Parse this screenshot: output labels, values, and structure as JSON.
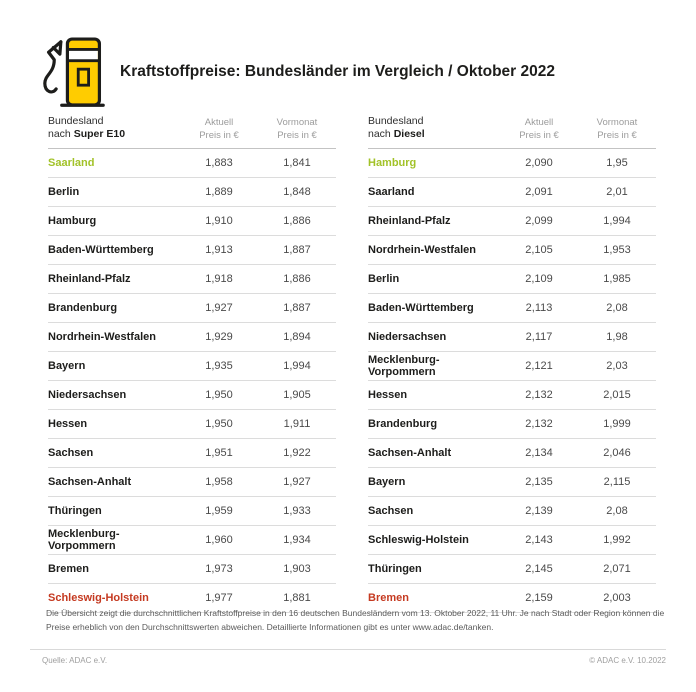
{
  "page": {
    "title": "Kraftstoffpreise: Bundesländer im Vergleich / Oktober 2022"
  },
  "colors": {
    "accent_yellow": "#FFCC00",
    "highlight_green": "#A2C228",
    "highlight_red": "#C53A21",
    "ink": "#1D1D1B"
  },
  "tables": [
    {
      "id": "super-e10",
      "head": {
        "group_line1": "Bundesland",
        "group_line2_prefix": "nach",
        "fuel": "Super E10",
        "col_aktuell_line1": "Aktuell",
        "col_aktuell_line2": "Preis in €",
        "col_vormonat_line1": "Vormonat",
        "col_vormonat_line2": "Preis in €"
      },
      "rows": [
        {
          "state": "Saarland",
          "aktuell": "1,883",
          "vormonat": "1,841",
          "highlight": "green"
        },
        {
          "state": "Berlin",
          "aktuell": "1,889",
          "vormonat": "1,848",
          "highlight": null
        },
        {
          "state": "Hamburg",
          "aktuell": "1,910",
          "vormonat": "1,886",
          "highlight": null
        },
        {
          "state": "Baden-Württemberg",
          "aktuell": "1,913",
          "vormonat": "1,887",
          "highlight": null
        },
        {
          "state": "Rheinland-Pfalz",
          "aktuell": "1,918",
          "vormonat": "1,886",
          "highlight": null
        },
        {
          "state": "Brandenburg",
          "aktuell": "1,927",
          "vormonat": "1,887",
          "highlight": null
        },
        {
          "state": "Nordrhein-Westfalen",
          "aktuell": "1,929",
          "vormonat": "1,894",
          "highlight": null
        },
        {
          "state": "Bayern",
          "aktuell": "1,935",
          "vormonat": "1,994",
          "highlight": null
        },
        {
          "state": "Niedersachsen",
          "aktuell": "1,950",
          "vormonat": "1,905",
          "highlight": null
        },
        {
          "state": "Hessen",
          "aktuell": "1,950",
          "vormonat": "1,911",
          "highlight": null
        },
        {
          "state": "Sachsen",
          "aktuell": "1,951",
          "vormonat": "1,922",
          "highlight": null
        },
        {
          "state": "Sachsen-Anhalt",
          "aktuell": "1,958",
          "vormonat": "1,927",
          "highlight": null
        },
        {
          "state": "Thüringen",
          "aktuell": "1,959",
          "vormonat": "1,933",
          "highlight": null
        },
        {
          "state": "Mecklenburg-Vorpommern",
          "aktuell": "1,960",
          "vormonat": "1,934",
          "highlight": null
        },
        {
          "state": "Bremen",
          "aktuell": "1,973",
          "vormonat": "1,903",
          "highlight": null
        },
        {
          "state": "Schleswig-Holstein",
          "aktuell": "1,977",
          "vormonat": "1,881",
          "highlight": "red"
        }
      ]
    },
    {
      "id": "diesel",
      "head": {
        "group_line1": "Bundesland",
        "group_line2_prefix": "nach",
        "fuel": "Diesel",
        "col_aktuell_line1": "Aktuell",
        "col_aktuell_line2": "Preis in €",
        "col_vormonat_line1": "Vormonat",
        "col_vormonat_line2": "Preis in €"
      },
      "rows": [
        {
          "state": "Hamburg",
          "aktuell": "2,090",
          "vormonat": "1,95",
          "highlight": "green"
        },
        {
          "state": "Saarland",
          "aktuell": "2,091",
          "vormonat": "2,01",
          "highlight": null
        },
        {
          "state": "Rheinland-Pfalz",
          "aktuell": "2,099",
          "vormonat": "1,994",
          "highlight": null
        },
        {
          "state": "Nordrhein-Westfalen",
          "aktuell": "2,105",
          "vormonat": "1,953",
          "highlight": null
        },
        {
          "state": "Berlin",
          "aktuell": "2,109",
          "vormonat": "1,985",
          "highlight": null
        },
        {
          "state": "Baden-Württemberg",
          "aktuell": "2,113",
          "vormonat": "2,08",
          "highlight": null
        },
        {
          "state": "Niedersachsen",
          "aktuell": "2,117",
          "vormonat": "1,98",
          "highlight": null
        },
        {
          "state": "Mecklenburg-Vorpommern",
          "aktuell": "2,121",
          "vormonat": "2,03",
          "highlight": null
        },
        {
          "state": "Hessen",
          "aktuell": "2,132",
          "vormonat": "2,015",
          "highlight": null
        },
        {
          "state": "Brandenburg",
          "aktuell": "2,132",
          "vormonat": "1,999",
          "highlight": null
        },
        {
          "state": "Sachsen-Anhalt",
          "aktuell": "2,134",
          "vormonat": "2,046",
          "highlight": null
        },
        {
          "state": "Bayern",
          "aktuell": "2,135",
          "vormonat": "2,115",
          "highlight": null
        },
        {
          "state": "Sachsen",
          "aktuell": "2,139",
          "vormonat": "2,08",
          "highlight": null
        },
        {
          "state": "Schleswig-Holstein",
          "aktuell": "2,143",
          "vormonat": "1,992",
          "highlight": null
        },
        {
          "state": "Thüringen",
          "aktuell": "2,145",
          "vormonat": "2,071",
          "highlight": null
        },
        {
          "state": "Bremen",
          "aktuell": "2,159",
          "vormonat": "2,003",
          "highlight": "red"
        }
      ]
    }
  ],
  "chart_data": [
    {
      "type": "table",
      "title": "Bundesland nach Super E10",
      "columns": [
        "Bundesland",
        "Aktuell Preis in €",
        "Vormonat Preis in €"
      ],
      "rows": [
        [
          "Saarland",
          1.883,
          1.841
        ],
        [
          "Berlin",
          1.889,
          1.848
        ],
        [
          "Hamburg",
          1.91,
          1.886
        ],
        [
          "Baden-Württemberg",
          1.913,
          1.887
        ],
        [
          "Rheinland-Pfalz",
          1.918,
          1.886
        ],
        [
          "Brandenburg",
          1.927,
          1.887
        ],
        [
          "Nordrhein-Westfalen",
          1.929,
          1.894
        ],
        [
          "Bayern",
          1.935,
          1.994
        ],
        [
          "Niedersachsen",
          1.95,
          1.905
        ],
        [
          "Hessen",
          1.95,
          1.911
        ],
        [
          "Sachsen",
          1.951,
          1.922
        ],
        [
          "Sachsen-Anhalt",
          1.958,
          1.927
        ],
        [
          "Thüringen",
          1.959,
          1.933
        ],
        [
          "Mecklenburg-Vorpommern",
          1.96,
          1.934
        ],
        [
          "Bremen",
          1.973,
          1.903
        ],
        [
          "Schleswig-Holstein",
          1.977,
          1.881
        ]
      ],
      "annotations": {
        "cheapest_highlighted_green": "Saarland",
        "most_expensive_highlighted_red": "Schleswig-Holstein"
      }
    },
    {
      "type": "table",
      "title": "Bundesland nach Diesel",
      "columns": [
        "Bundesland",
        "Aktuell Preis in €",
        "Vormonat Preis in €"
      ],
      "rows": [
        [
          "Hamburg",
          2.09,
          1.95
        ],
        [
          "Saarland",
          2.091,
          2.01
        ],
        [
          "Rheinland-Pfalz",
          2.099,
          1.994
        ],
        [
          "Nordrhein-Westfalen",
          2.105,
          1.953
        ],
        [
          "Berlin",
          2.109,
          1.985
        ],
        [
          "Baden-Württemberg",
          2.113,
          2.08
        ],
        [
          "Niedersachsen",
          2.117,
          1.98
        ],
        [
          "Mecklenburg-Vorpommern",
          2.121,
          2.03
        ],
        [
          "Hessen",
          2.132,
          2.015
        ],
        [
          "Brandenburg",
          2.132,
          1.999
        ],
        [
          "Sachsen-Anhalt",
          2.134,
          2.046
        ],
        [
          "Bayern",
          2.135,
          2.115
        ],
        [
          "Sachsen",
          2.139,
          2.08
        ],
        [
          "Schleswig-Holstein",
          2.143,
          1.992
        ],
        [
          "Thüringen",
          2.145,
          2.071
        ],
        [
          "Bremen",
          2.159,
          2.003
        ]
      ],
      "annotations": {
        "cheapest_highlighted_green": "Hamburg",
        "most_expensive_highlighted_red": "Bremen"
      }
    }
  ],
  "footnote": {
    "lines": [
      "Die Übersicht zeigt die durchschnittlichen Kraftstoffpreise in den 16 deutschen Bundesländern vom 13. Oktober 2022, 11 Uhr. Je nach Stadt oder Region können die",
      "Preise erheblich von den Durchschnittswerten abweichen. Detaillierte Informationen gibt es unter www.adac.de/tanken."
    ]
  },
  "footer": {
    "source": "Quelle: ADAC e.V.",
    "copyright": "© ADAC e.V. 10.2022"
  }
}
